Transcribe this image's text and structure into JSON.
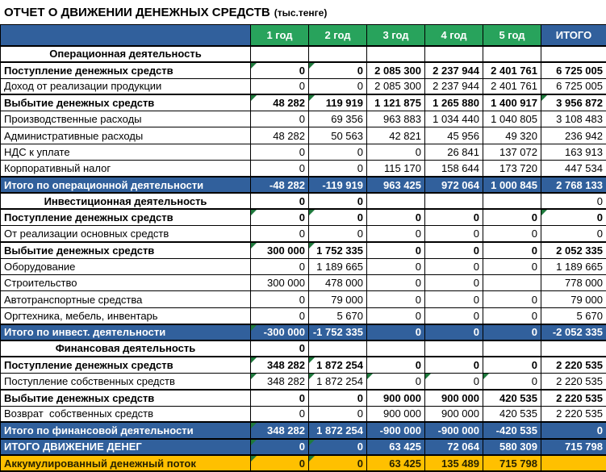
{
  "title": {
    "main": "ОТЧЕТ О ДВИЖЕНИИ ДЕНЕЖНЫХ СРЕДСТВ",
    "unit": "(тыс.тенге)"
  },
  "colors": {
    "header_and_total_blue": "#31609C",
    "header_green": "#28A35C",
    "accum_yellow": "#FFC000",
    "accum_text": "#262200",
    "error_indicator_green": "#1F7A3D"
  },
  "table": {
    "columns": [
      "1 год",
      "2 год",
      "3 год",
      "4 год",
      "5 год",
      "ИТОГО"
    ],
    "rows": [
      {
        "label": "Операционная деятельность",
        "style": "section",
        "values": [
          "",
          "",
          "",
          "",
          "",
          ""
        ],
        "triangles": []
      },
      {
        "label": "Поступление денежных средств",
        "style": "bold",
        "values": [
          "0",
          "0",
          "2 085 300",
          "2 237 944",
          "2 401 761",
          "6 725 005"
        ],
        "triangles": [
          0,
          1
        ]
      },
      {
        "label": "Доход от реализации продукции",
        "style": "detail",
        "values": [
          "0",
          "0",
          "2 085 300",
          "2 237 944",
          "2 401 761",
          "6 725 005"
        ],
        "triangles": []
      },
      {
        "label": "Выбытие денежных средств",
        "style": "bold",
        "values": [
          "48 282",
          "119 919",
          "1 121 875",
          "1 265 880",
          "1 400 917",
          "3 956 872"
        ],
        "triangles": [
          0,
          1,
          5
        ]
      },
      {
        "label": "Производственные расходы",
        "style": "detail",
        "values": [
          "0",
          "69 356",
          "963 883",
          "1 034 440",
          "1 040 805",
          "3 108 483"
        ],
        "triangles": []
      },
      {
        "label": "Административные расходы",
        "style": "detail",
        "values": [
          "48 282",
          "50 563",
          "42 821",
          "45 956",
          "49 320",
          "236 942"
        ],
        "triangles": []
      },
      {
        "label": "НДС к уплате",
        "style": "detail",
        "values": [
          "0",
          "0",
          "0",
          "26 841",
          "137 072",
          "163 913"
        ],
        "triangles": []
      },
      {
        "label": "Корпоративный налог",
        "style": "detail",
        "values": [
          "0",
          "0",
          "115 170",
          "158 644",
          "173 720",
          "447 534"
        ],
        "triangles": []
      },
      {
        "label": "Итого по операционной деятельности",
        "style": "total",
        "values": [
          "-48 282",
          "-119 919",
          "963 425",
          "972 064",
          "1 000 845",
          "2 768 133"
        ],
        "triangles": []
      },
      {
        "label": "Инвестиционная деятельность",
        "style": "section",
        "values": [
          "0",
          "0",
          "",
          "",
          "",
          "0"
        ],
        "triangles": []
      },
      {
        "label": "Поступление денежных средств",
        "style": "bold",
        "values": [
          "0",
          "0",
          "0",
          "0",
          "0",
          "0"
        ],
        "triangles": [
          0,
          1,
          5
        ]
      },
      {
        "label": "От реализации основных средств",
        "style": "detail",
        "values": [
          "0",
          "0",
          "0",
          "0",
          "0",
          "0"
        ],
        "triangles": []
      },
      {
        "label": "Выбытие денежных средств",
        "style": "bold",
        "values": [
          "300 000",
          "1 752 335",
          "0",
          "0",
          "0",
          "2 052 335"
        ],
        "triangles": [
          0,
          1
        ]
      },
      {
        "label": "Оборудование",
        "style": "detail",
        "values": [
          "0",
          "1 189 665",
          "0",
          "0",
          "0",
          "1 189 665"
        ],
        "triangles": []
      },
      {
        "label": "Строительство",
        "style": "detail",
        "values": [
          "300 000",
          "478 000",
          "0",
          "0",
          "",
          "778 000"
        ],
        "triangles": []
      },
      {
        "label": "Автотранспортные средства",
        "style": "detail",
        "values": [
          "0",
          "79 000",
          "0",
          "0",
          "0",
          "79 000"
        ],
        "triangles": []
      },
      {
        "label": "Оргтехника, мебель, инвентарь",
        "style": "detail",
        "values": [
          "0",
          "5 670",
          "0",
          "0",
          "0",
          "5 670"
        ],
        "triangles": []
      },
      {
        "label": "Итого по инвест. деятельности",
        "style": "total",
        "values": [
          "-300 000",
          "-1 752 335",
          "0",
          "0",
          "0",
          "-2 052 335"
        ],
        "triangles": [
          0
        ]
      },
      {
        "label": "Финансовая деятельность",
        "style": "section",
        "values": [
          "0",
          "",
          "",
          "",
          "",
          ""
        ],
        "triangles": []
      },
      {
        "label": "Поступление денежных средств",
        "style": "bold",
        "values": [
          "348 282",
          "1 872 254",
          "0",
          "0",
          "0",
          "2 220 535"
        ],
        "triangles": [
          0,
          1
        ]
      },
      {
        "label": "Поступление собственных средств",
        "style": "detail",
        "values": [
          "348 282",
          "1 872 254",
          "0",
          "0",
          "0",
          "2 220 535"
        ],
        "triangles": [
          0,
          1,
          2,
          3,
          4
        ]
      },
      {
        "label": "Выбытие денежных средств",
        "style": "bold",
        "values": [
          "0",
          "0",
          "900 000",
          "900 000",
          "420 535",
          "2 220 535"
        ],
        "triangles": []
      },
      {
        "label": "Возврат  собственных средств",
        "style": "detail",
        "values": [
          "0",
          "0",
          "900 000",
          "900 000",
          "420 535",
          "2 220 535"
        ],
        "triangles": []
      },
      {
        "label": "Итого по финансовой деятельности",
        "style": "total",
        "values": [
          "348 282",
          "1 872 254",
          "-900 000",
          "-900 000",
          "-420 535",
          "0"
        ],
        "triangles": [
          0
        ]
      },
      {
        "label": "ИТОГО ДВИЖЕНИЕ ДЕНЕГ",
        "style": "grand",
        "values": [
          "0",
          "0",
          "63 425",
          "72 064",
          "580 309",
          "715 798"
        ],
        "triangles": [
          0,
          1
        ]
      },
      {
        "label": "Аккумулированный денежный поток",
        "style": "accum",
        "values": [
          "0",
          "0",
          "63 425",
          "135 489",
          "715 798",
          ""
        ],
        "triangles": [
          0,
          1
        ]
      }
    ]
  }
}
